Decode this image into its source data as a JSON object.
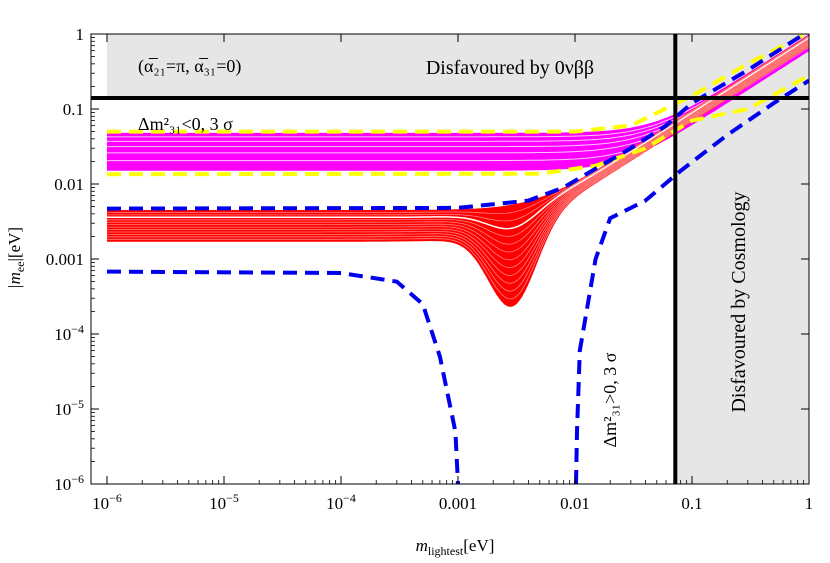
{
  "chart_data": {
    "type": "line",
    "xscale": "log",
    "yscale": "log",
    "xlim": [
      1e-06,
      1
    ],
    "ylim": [
      1e-06,
      1
    ],
    "xlabel": {
      "main": "m",
      "sub": "lightest",
      "unit": "[eV]"
    },
    "ylabel": {
      "main": "|m",
      "sub": "ee",
      "unit": "|[eV]"
    },
    "x_ticks": [
      {
        "value": 1e-06,
        "base": "10",
        "exp": "−6",
        "text": ""
      },
      {
        "value": 1e-05,
        "base": "10",
        "exp": "−5",
        "text": ""
      },
      {
        "value": 0.0001,
        "base": "10",
        "exp": "−4",
        "text": ""
      },
      {
        "value": 0.001,
        "base": "",
        "exp": "",
        "text": "0.001"
      },
      {
        "value": 0.01,
        "base": "",
        "exp": "",
        "text": "0.01"
      },
      {
        "value": 0.1,
        "base": "",
        "exp": "",
        "text": "0.1"
      },
      {
        "value": 1,
        "base": "",
        "exp": "",
        "text": "1"
      }
    ],
    "y_ticks": [
      {
        "value": 1e-06,
        "base": "10",
        "exp": "−6",
        "text": ""
      },
      {
        "value": 1e-05,
        "base": "10",
        "exp": "−5",
        "text": ""
      },
      {
        "value": 0.0001,
        "base": "10",
        "exp": "−4",
        "text": ""
      },
      {
        "value": 0.001,
        "base": "",
        "exp": "",
        "text": "0.001"
      },
      {
        "value": 0.01,
        "base": "",
        "exp": "",
        "text": "0.01"
      },
      {
        "value": 0.1,
        "base": "",
        "exp": "",
        "text": "0.1"
      },
      {
        "value": 1,
        "base": "",
        "exp": "",
        "text": "1"
      }
    ],
    "disfavoured_regions": {
      "neutrinoless_bound_mee": 0.14,
      "cosmology_bound_mlightest": 0.072,
      "fill_color": "#e6e6e6"
    },
    "annotations": {
      "phase_label": "(α̅₂₁=π, α̅₃₁=0)",
      "disfavoured_0vbb": "Disfavoured by 0νββ",
      "disfavoured_cosmology": "Disfavoured by Cosmology",
      "inverted_label": "Δm²₃₁<0, 3 σ",
      "normal_label": "Δm²₃₁>0, 3 σ"
    },
    "bands": {
      "inverted": {
        "color": "#ff00ff",
        "mee_low": 0.015,
        "mee_high": 0.048,
        "mee_low_3sigma": 0.013,
        "mee_high_3sigma": 0.05
      },
      "normal": {
        "color": "#ff0000",
        "mee_low": 0.0017,
        "mee_high": 0.0045,
        "dip_min": 0.00023,
        "dip_x": 0.0028
      }
    },
    "series": [
      {
        "color": "#ffff00",
        "style": "dashed",
        "points": [
          [
            1e-06,
            0.05
          ],
          [
            0.01,
            0.05
          ],
          [
            0.03,
            0.06
          ],
          [
            0.1,
            0.15
          ],
          [
            0.3,
            0.4
          ],
          [
            1,
            1.05
          ]
        ]
      },
      {
        "color": "#ffff00",
        "style": "dashed",
        "points": [
          [
            1e-06,
            0.0135
          ],
          [
            0.005,
            0.0137
          ],
          [
            0.015,
            0.0175
          ],
          [
            0.04,
            0.03
          ],
          [
            0.1,
            0.07
          ],
          [
            0.3,
            0.1
          ],
          [
            1,
            0.28
          ]
        ]
      },
      {
        "color": "#0000ee",
        "style": "dashed",
        "points": [
          [
            1e-06,
            0.0047
          ],
          [
            0.001,
            0.0048
          ],
          [
            0.004,
            0.006
          ],
          [
            0.008,
            0.009
          ],
          [
            0.015,
            0.016
          ],
          [
            0.03,
            0.03
          ],
          [
            0.06,
            0.06
          ],
          [
            0.1,
            0.12
          ],
          [
            0.3,
            0.33
          ],
          [
            1,
            1.1
          ]
        ]
      },
      {
        "color": "#0000ee",
        "style": "dashed",
        "points": [
          [
            1e-06,
            0.00068
          ],
          [
            0.0001,
            0.00065
          ],
          [
            0.0003,
            0.0005
          ],
          [
            0.0005,
            0.00025
          ],
          [
            0.0007,
            5e-05
          ],
          [
            0.00095,
            5e-06
          ],
          [
            0.001,
            1e-06
          ]
        ]
      },
      {
        "color": "#0000ee",
        "style": "dashed",
        "points": [
          [
            0.0102,
            1e-06
          ],
          [
            0.0104,
            5e-06
          ],
          [
            0.011,
            6e-05
          ],
          [
            0.015,
            0.001
          ],
          [
            0.02,
            0.0035
          ],
          [
            0.04,
            0.006
          ],
          [
            0.08,
            0.015
          ],
          [
            0.2,
            0.045
          ],
          [
            0.5,
            0.12
          ],
          [
            1,
            0.24
          ]
        ]
      }
    ]
  }
}
